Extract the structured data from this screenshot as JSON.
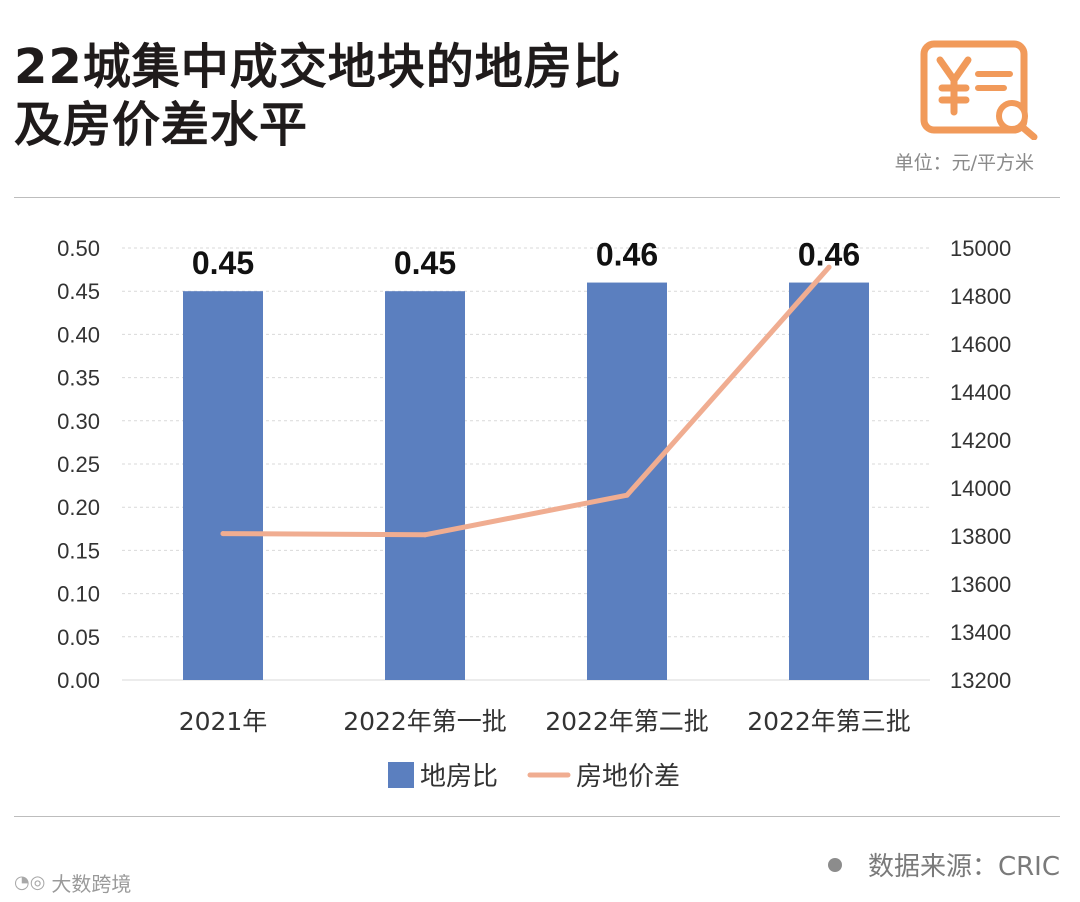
{
  "header": {
    "title_line1": "22城集中成交地块的地房比",
    "title_line2": "及房价差水平",
    "unit": "单位：元/平方米"
  },
  "footer": {
    "source": "数据来源：CRIC",
    "brand_watermark": "大数跨境"
  },
  "icons": {
    "badge": "yuan-document-search-icon",
    "source_dot": "dot-icon",
    "brand_logo": "weibo-logo-icon"
  },
  "colors": {
    "bar": "#5b7fbf",
    "line": "#f0ad91",
    "icon": "#f19a5a",
    "axis_text": "#333333",
    "grid": "#d9d9d9"
  },
  "chart_data": {
    "type": "bar",
    "categories": [
      "2021年",
      "2022年第一批",
      "2022年第二批",
      "2022年第三批"
    ],
    "series": [
      {
        "name": "地房比",
        "type": "bar",
        "axis": "left",
        "values": [
          0.45,
          0.45,
          0.46,
          0.46
        ],
        "labels": [
          "0.45",
          "0.45",
          "0.46",
          "0.46"
        ]
      },
      {
        "name": "房地价差",
        "type": "line",
        "axis": "right",
        "values": [
          13810,
          13805,
          13970,
          14920
        ]
      }
    ],
    "y_left": {
      "min": 0,
      "max": 0.5,
      "step": 0.05,
      "ticks": [
        "0.00",
        "0.05",
        "0.10",
        "0.15",
        "0.20",
        "0.25",
        "0.30",
        "0.35",
        "0.40",
        "0.45",
        "0.50"
      ]
    },
    "y_right": {
      "min": 13200,
      "max": 15000,
      "step": 200,
      "ticks": [
        "13200",
        "13400",
        "13600",
        "13800",
        "14000",
        "14200",
        "14400",
        "14600",
        "14800",
        "15000"
      ]
    },
    "grid": true,
    "legend_position": "bottom"
  }
}
